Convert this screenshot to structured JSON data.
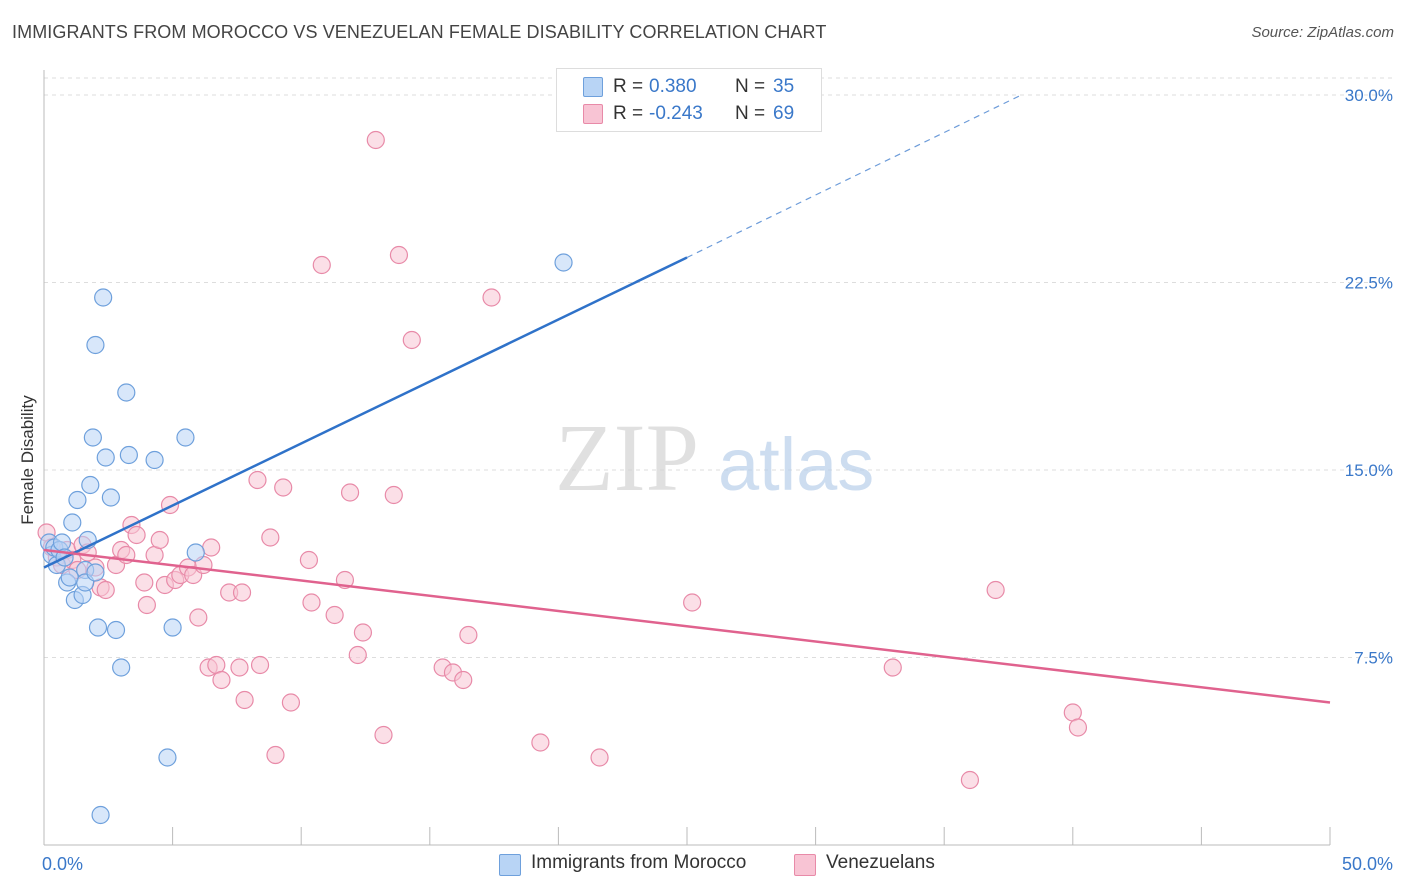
{
  "header": {
    "title": "IMMIGRANTS FROM MOROCCO VS VENEZUELAN FEMALE DISABILITY CORRELATION CHART",
    "source": "Source: ZipAtlas.com"
  },
  "watermark": {
    "zip": "ZIP",
    "atlas": "atlas"
  },
  "legend": {
    "rows": [
      {
        "r_label": "R =",
        "r_value": "0.380",
        "n_label": "N =",
        "n_value": "35"
      },
      {
        "r_label": "R =",
        "r_value": "-0.243",
        "n_label": "N =",
        "n_value": "69"
      }
    ]
  },
  "bottom_legend": {
    "items": [
      {
        "label": "Immigrants from Morocco"
      },
      {
        "label": "Venezuelans"
      }
    ]
  },
  "colors": {
    "blue_fill": "#b8d4f5",
    "blue_stroke": "#6ea0dc",
    "blue_line": "#2f72c9",
    "pink_fill": "#f8c4d4",
    "pink_stroke": "#e88aa8",
    "pink_line": "#e0628e",
    "tick_label": "#3a78c9",
    "grid": "#dddddd"
  },
  "chart_data": {
    "type": "scatter",
    "ylabel": "Female Disability",
    "xlim": [
      0,
      50
    ],
    "ylim": [
      0,
      31
    ],
    "x_tick_labels": [
      {
        "value": 0,
        "label": "0.0%"
      },
      {
        "value": 50,
        "label": "50.0%"
      }
    ],
    "y_tick_labels": [
      {
        "value": 7.5,
        "label": "7.5%"
      },
      {
        "value": 15,
        "label": "15.0%"
      },
      {
        "value": 22.5,
        "label": "22.5%"
      },
      {
        "value": 30,
        "label": "30.0%"
      }
    ],
    "series": [
      {
        "name": "Immigrants from Morocco",
        "color": "blue",
        "points": [
          [
            0.2,
            12.1
          ],
          [
            0.3,
            11.6
          ],
          [
            0.4,
            11.9
          ],
          [
            0.5,
            11.2
          ],
          [
            0.6,
            11.8
          ],
          [
            0.7,
            12.1
          ],
          [
            0.8,
            11.5
          ],
          [
            0.9,
            10.5
          ],
          [
            1.0,
            10.7
          ],
          [
            1.1,
            12.9
          ],
          [
            1.2,
            9.8
          ],
          [
            1.3,
            13.8
          ],
          [
            1.5,
            10.0
          ],
          [
            1.6,
            11.0
          ],
          [
            1.6,
            10.5
          ],
          [
            1.7,
            12.2
          ],
          [
            1.8,
            14.4
          ],
          [
            1.9,
            16.3
          ],
          [
            2.0,
            20.0
          ],
          [
            2.0,
            10.9
          ],
          [
            2.1,
            8.7
          ],
          [
            2.2,
            1.2
          ],
          [
            2.3,
            21.9
          ],
          [
            2.4,
            15.5
          ],
          [
            2.6,
            13.9
          ],
          [
            2.8,
            8.6
          ],
          [
            3.0,
            7.1
          ],
          [
            3.2,
            18.1
          ],
          [
            3.3,
            15.6
          ],
          [
            4.3,
            15.4
          ],
          [
            4.8,
            3.5
          ],
          [
            5.0,
            8.7
          ],
          [
            5.5,
            16.3
          ],
          [
            5.9,
            11.7
          ],
          [
            20.2,
            23.3
          ]
        ]
      },
      {
        "name": "Venezuelans",
        "color": "pink",
        "points": [
          [
            0.1,
            12.5
          ],
          [
            0.3,
            11.9
          ],
          [
            0.5,
            11.5
          ],
          [
            0.7,
            11.2
          ],
          [
            0.9,
            11.8
          ],
          [
            1.1,
            11.4
          ],
          [
            1.3,
            11.0
          ],
          [
            1.5,
            12.0
          ],
          [
            1.7,
            11.7
          ],
          [
            2.0,
            11.1
          ],
          [
            2.2,
            10.3
          ],
          [
            2.4,
            10.2
          ],
          [
            2.8,
            11.2
          ],
          [
            3.0,
            11.8
          ],
          [
            3.2,
            11.6
          ],
          [
            3.4,
            12.8
          ],
          [
            3.6,
            12.4
          ],
          [
            3.9,
            10.5
          ],
          [
            4.0,
            9.6
          ],
          [
            4.3,
            11.6
          ],
          [
            4.5,
            12.2
          ],
          [
            4.7,
            10.4
          ],
          [
            4.9,
            13.6
          ],
          [
            5.1,
            10.6
          ],
          [
            5.3,
            10.8
          ],
          [
            5.6,
            11.1
          ],
          [
            5.8,
            10.8
          ],
          [
            6.0,
            9.1
          ],
          [
            6.2,
            11.2
          ],
          [
            6.4,
            7.1
          ],
          [
            6.5,
            11.9
          ],
          [
            6.7,
            7.2
          ],
          [
            6.9,
            6.6
          ],
          [
            7.2,
            10.1
          ],
          [
            7.6,
            7.1
          ],
          [
            7.7,
            10.1
          ],
          [
            7.8,
            5.8
          ],
          [
            8.3,
            14.6
          ],
          [
            8.4,
            7.2
          ],
          [
            8.8,
            12.3
          ],
          [
            9.0,
            3.6
          ],
          [
            9.3,
            14.3
          ],
          [
            9.6,
            5.7
          ],
          [
            10.3,
            11.4
          ],
          [
            10.4,
            9.7
          ],
          [
            10.8,
            23.2
          ],
          [
            11.3,
            9.2
          ],
          [
            11.7,
            10.6
          ],
          [
            11.9,
            14.1
          ],
          [
            12.2,
            7.6
          ],
          [
            12.4,
            8.5
          ],
          [
            12.9,
            28.2
          ],
          [
            13.2,
            4.4
          ],
          [
            13.6,
            14.0
          ],
          [
            13.8,
            23.6
          ],
          [
            14.3,
            20.2
          ],
          [
            15.5,
            7.1
          ],
          [
            15.9,
            6.9
          ],
          [
            16.3,
            6.6
          ],
          [
            16.5,
            8.4
          ],
          [
            17.4,
            21.9
          ],
          [
            19.3,
            4.1
          ],
          [
            21.6,
            3.5
          ],
          [
            25.2,
            9.7
          ],
          [
            33.0,
            7.1
          ],
          [
            36.0,
            2.6
          ],
          [
            37.0,
            10.2
          ],
          [
            40.0,
            5.3
          ],
          [
            40.2,
            4.7
          ]
        ]
      }
    ],
    "trend_lines": [
      {
        "series": "Immigrants from Morocco",
        "x_start": 0,
        "y_start": 11.1,
        "x_end": 25,
        "y_end": 23.5,
        "dashed_to": [
          38.0,
          30.0
        ]
      },
      {
        "series": "Venezuelans",
        "x_start": 0,
        "y_start": 11.8,
        "x_end": 50,
        "y_end": 5.7
      }
    ]
  }
}
